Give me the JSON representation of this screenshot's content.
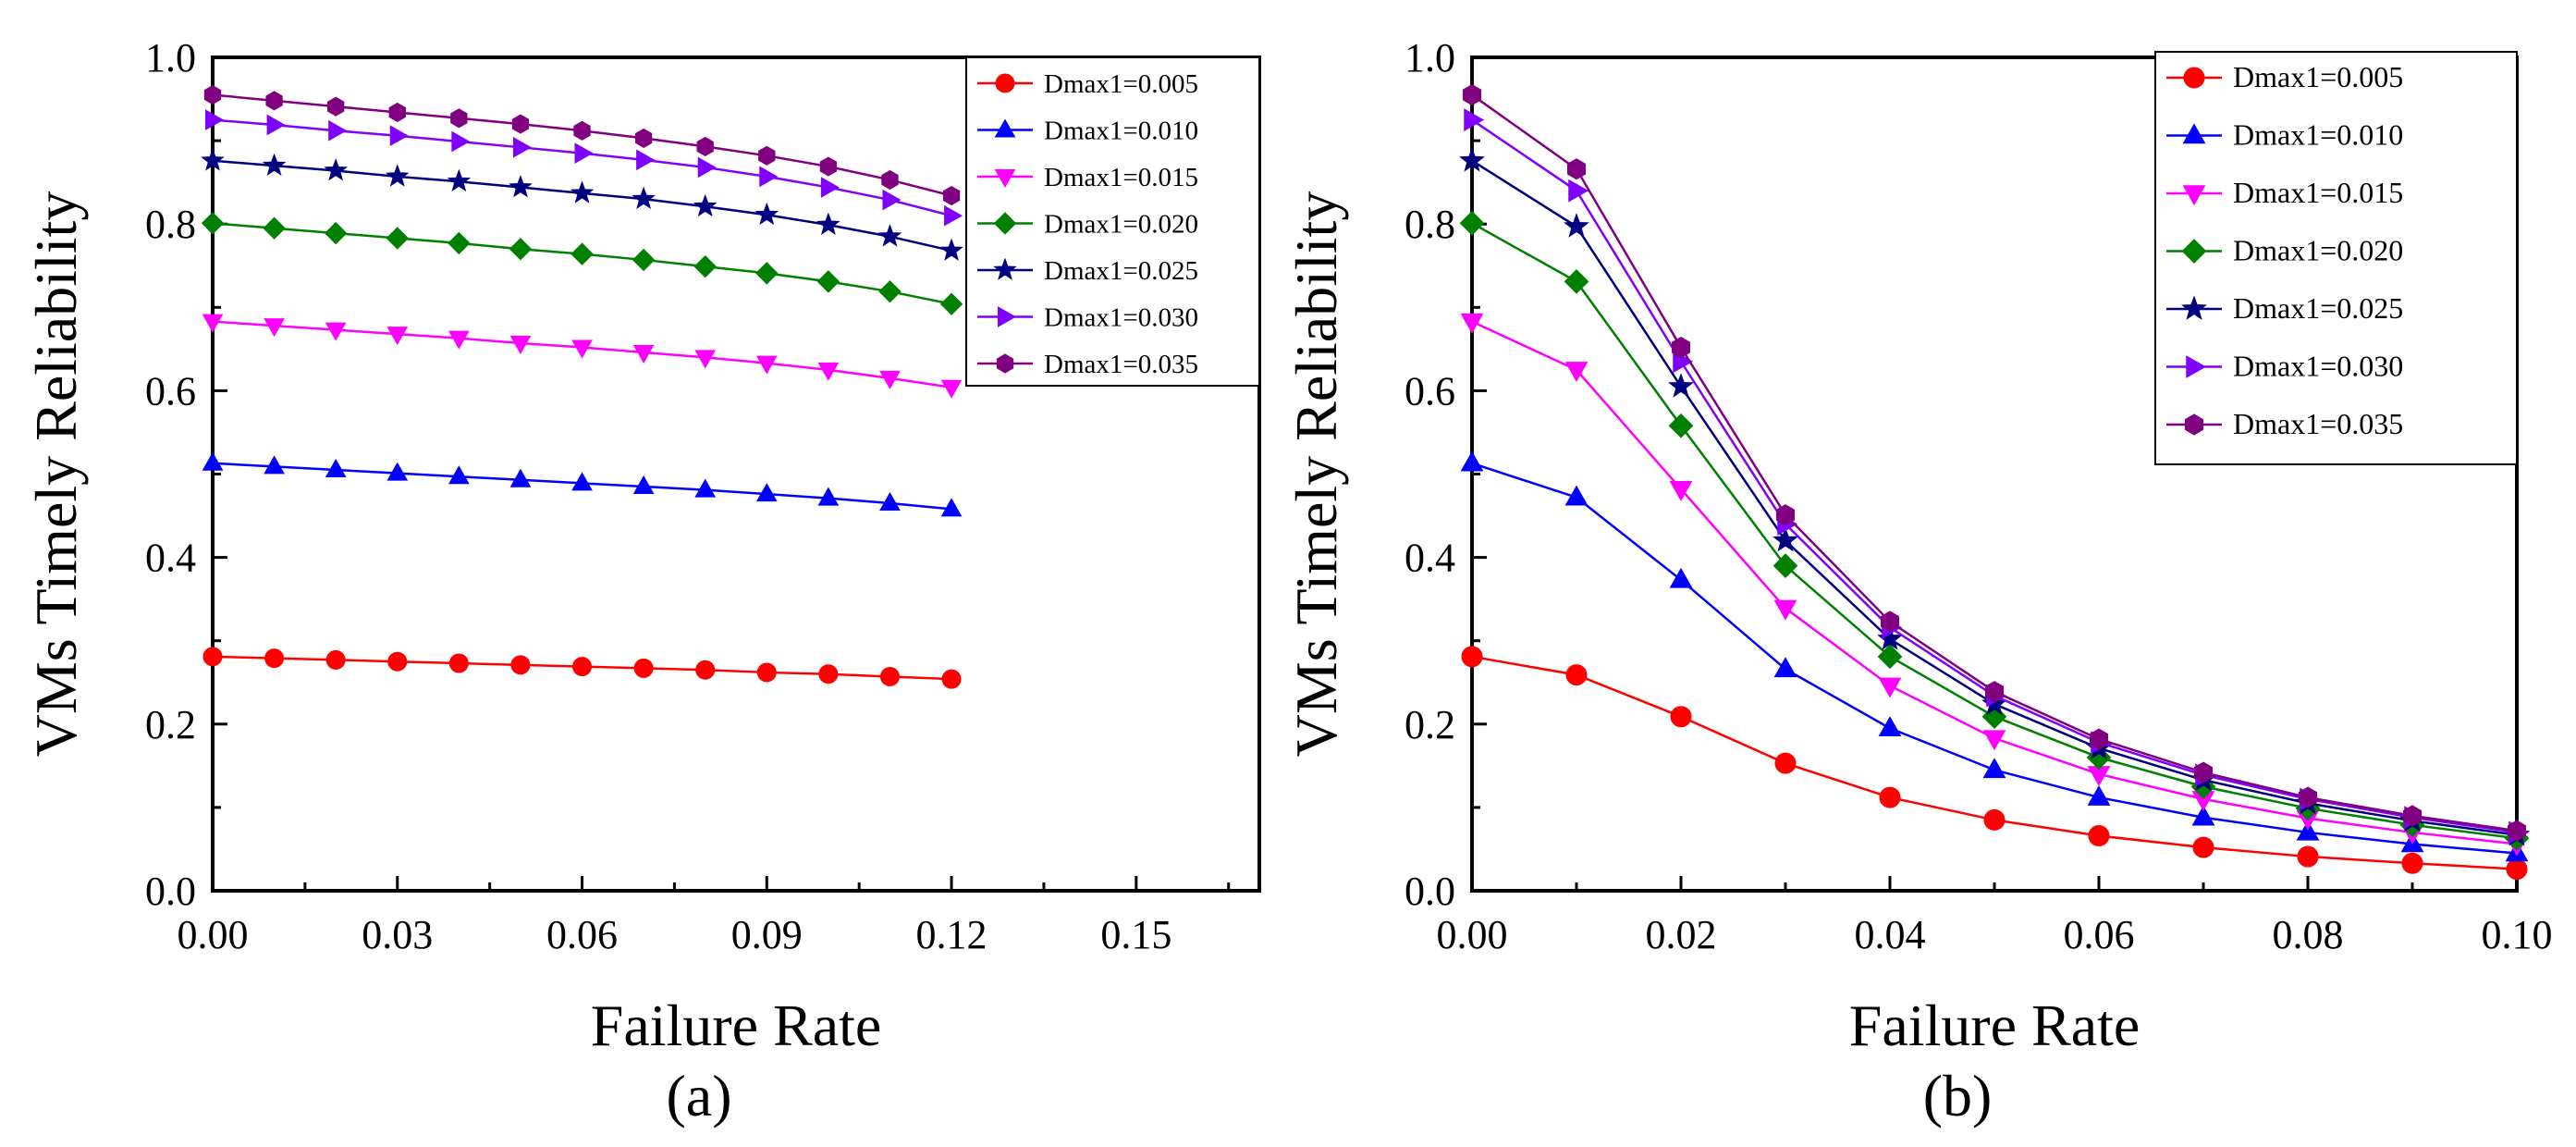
{
  "figure": {
    "panels": [
      "(a)",
      "(b)"
    ]
  },
  "chart_data": [
    {
      "type": "line",
      "panel_label": "(a)",
      "xlabel": "Failure Rate",
      "ylabel": "VMs Timely Reliability",
      "xlim": [
        0,
        0.17
      ],
      "ylim": [
        0,
        1.0
      ],
      "xticks": [
        0,
        0.03,
        0.06,
        0.09,
        0.12,
        0.15
      ],
      "xtick_labels": [
        "0.00",
        "0.03",
        "0.06",
        "0.09",
        "0.12",
        "0.15"
      ],
      "yticks": [
        0,
        0.2,
        0.4,
        0.6,
        0.8,
        1.0
      ],
      "ytick_labels": [
        "0.0",
        "0.2",
        "0.4",
        "0.6",
        "0.8",
        "1.0"
      ],
      "legend_position": "top-right",
      "x": [
        0,
        0.01,
        0.02,
        0.03,
        0.04,
        0.05,
        0.06,
        0.07,
        0.08,
        0.09,
        0.1,
        0.11,
        0.12
      ],
      "series": [
        {
          "name": "Dmax1=0.005",
          "color": "#ff0000",
          "marker": "circle",
          "values": [
            0.281,
            0.279,
            0.277,
            0.275,
            0.273,
            0.271,
            0.269,
            0.267,
            0.265,
            0.262,
            0.26,
            0.257,
            0.254
          ]
        },
        {
          "name": "Dmax1=0.010",
          "color": "#0000ff",
          "marker": "triangle-up",
          "values": [
            0.513,
            0.509,
            0.505,
            0.501,
            0.497,
            0.493,
            0.489,
            0.485,
            0.481,
            0.476,
            0.471,
            0.465,
            0.458
          ]
        },
        {
          "name": "Dmax1=0.015",
          "color": "#ff00ff",
          "marker": "triangle-down",
          "values": [
            0.683,
            0.678,
            0.673,
            0.668,
            0.663,
            0.657,
            0.652,
            0.646,
            0.64,
            0.633,
            0.625,
            0.615,
            0.604
          ]
        },
        {
          "name": "Dmax1=0.020",
          "color": "#008000",
          "marker": "diamond",
          "values": [
            0.801,
            0.795,
            0.789,
            0.783,
            0.777,
            0.77,
            0.764,
            0.757,
            0.749,
            0.741,
            0.731,
            0.719,
            0.704
          ]
        },
        {
          "name": "Dmax1=0.025",
          "color": "#000080",
          "marker": "star",
          "values": [
            0.876,
            0.87,
            0.864,
            0.857,
            0.851,
            0.844,
            0.837,
            0.83,
            0.821,
            0.811,
            0.799,
            0.785,
            0.768
          ]
        },
        {
          "name": "Dmax1=0.030",
          "color": "#8000ff",
          "marker": "triangle-right",
          "values": [
            0.925,
            0.919,
            0.912,
            0.906,
            0.899,
            0.892,
            0.885,
            0.877,
            0.868,
            0.857,
            0.844,
            0.829,
            0.81
          ]
        },
        {
          "name": "Dmax1=0.035",
          "color": "#800080",
          "marker": "hexagon",
          "values": [
            0.955,
            0.948,
            0.941,
            0.934,
            0.927,
            0.92,
            0.912,
            0.903,
            0.893,
            0.882,
            0.869,
            0.853,
            0.834
          ]
        }
      ]
    },
    {
      "type": "line",
      "panel_label": "(b)",
      "xlabel": "Failure Rate",
      "ylabel": "VMs Timely Reliability",
      "xlim": [
        0,
        0.1
      ],
      "ylim": [
        0,
        1.0
      ],
      "xticks": [
        0,
        0.02,
        0.04,
        0.06,
        0.08,
        0.1
      ],
      "xtick_labels": [
        "0.00",
        "0.02",
        "0.04",
        "0.06",
        "0.08",
        "0.10"
      ],
      "yticks": [
        0,
        0.2,
        0.4,
        0.6,
        0.8,
        1.0
      ],
      "ytick_labels": [
        "0.0",
        "0.2",
        "0.4",
        "0.6",
        "0.8",
        "1.0"
      ],
      "legend_position": "top-right",
      "x": [
        0,
        0.01,
        0.02,
        0.03,
        0.04,
        0.05,
        0.06,
        0.07,
        0.08,
        0.09,
        0.1
      ],
      "series": [
        {
          "name": "Dmax1=0.005",
          "color": "#ff0000",
          "marker": "circle",
          "values": [
            0.281,
            0.259,
            0.209,
            0.153,
            0.112,
            0.085,
            0.066,
            0.052,
            0.041,
            0.033,
            0.026
          ]
        },
        {
          "name": "Dmax1=0.010",
          "color": "#0000ff",
          "marker": "triangle-up",
          "values": [
            0.513,
            0.472,
            0.373,
            0.266,
            0.195,
            0.145,
            0.112,
            0.088,
            0.07,
            0.056,
            0.045
          ]
        },
        {
          "name": "Dmax1=0.015",
          "color": "#ff00ff",
          "marker": "triangle-down",
          "values": [
            0.683,
            0.625,
            0.482,
            0.339,
            0.246,
            0.183,
            0.14,
            0.11,
            0.087,
            0.07,
            0.056
          ]
        },
        {
          "name": "Dmax1=0.020",
          "color": "#008000",
          "marker": "diamond",
          "values": [
            0.801,
            0.731,
            0.558,
            0.39,
            0.281,
            0.209,
            0.16,
            0.125,
            0.099,
            0.079,
            0.063
          ]
        },
        {
          "name": "Dmax1=0.025",
          "color": "#000080",
          "marker": "star",
          "values": [
            0.876,
            0.797,
            0.605,
            0.42,
            0.302,
            0.224,
            0.171,
            0.133,
            0.105,
            0.084,
            0.067
          ]
        },
        {
          "name": "Dmax1=0.030",
          "color": "#8000ff",
          "marker": "triangle-right",
          "values": [
            0.925,
            0.84,
            0.635,
            0.44,
            0.316,
            0.234,
            0.178,
            0.139,
            0.11,
            0.088,
            0.07
          ]
        },
        {
          "name": "Dmax1=0.035",
          "color": "#800080",
          "marker": "hexagon",
          "values": [
            0.955,
            0.866,
            0.652,
            0.451,
            0.323,
            0.239,
            0.182,
            0.142,
            0.112,
            0.09,
            0.072
          ]
        }
      ]
    }
  ]
}
